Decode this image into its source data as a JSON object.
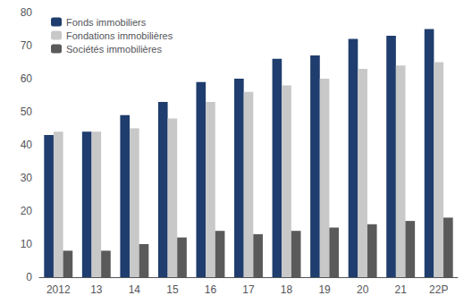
{
  "chart_data": {
    "type": "bar",
    "categories": [
      "2012",
      "13",
      "14",
      "15",
      "16",
      "17",
      "18",
      "19",
      "20",
      "21",
      "22P"
    ],
    "series": [
      {
        "name": "Fonds immobiliers",
        "color": "#1F3D6E",
        "values": [
          43,
          44,
          49,
          53,
          59,
          60,
          66,
          67,
          72,
          73,
          75
        ]
      },
      {
        "name": "Fondations immobilières",
        "color": "#C8C8C8",
        "values": [
          44,
          44,
          45,
          48,
          53,
          56,
          58,
          60,
          63,
          64,
          65
        ]
      },
      {
        "name": "Sociétés immobilières",
        "color": "#5A5A5A",
        "values": [
          8,
          8,
          10,
          12,
          14,
          13,
          14,
          15,
          16,
          17,
          18
        ]
      }
    ],
    "ylim": [
      0,
      80
    ],
    "yticks": [
      0,
      10,
      20,
      30,
      40,
      50,
      60,
      70,
      80
    ],
    "grid": false,
    "legend": "upper left"
  }
}
